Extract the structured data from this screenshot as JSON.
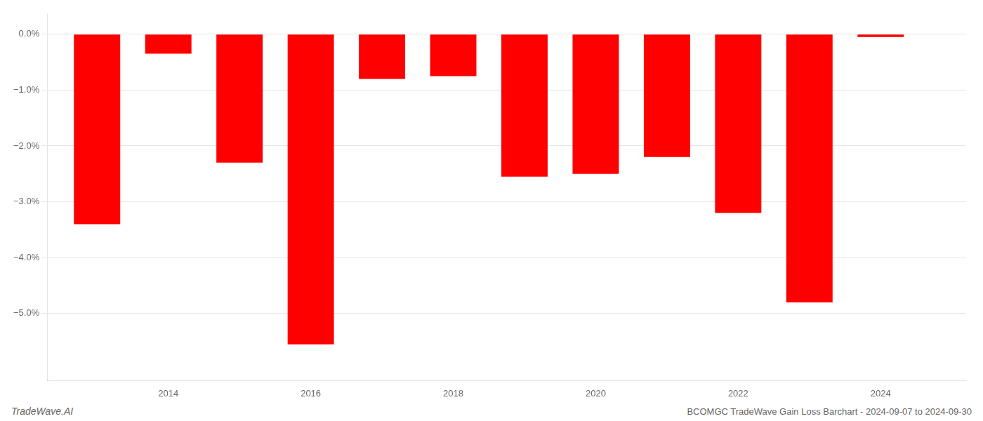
{
  "chart_data": {
    "type": "bar",
    "title": "BCOMGC TradeWave Gain Loss Barchart - 2024-09-07 to 2024-09-30",
    "annotations": [
      "TradeWave.AI"
    ],
    "x": [
      2013,
      2014,
      2015,
      2016,
      2017,
      2018,
      2019,
      2020,
      2021,
      2022,
      2023,
      2024
    ],
    "values": [
      -3.4,
      -0.35,
      -2.3,
      -5.55,
      -0.8,
      -0.75,
      -2.55,
      -2.5,
      -2.2,
      -3.2,
      -4.8,
      -0.05
    ],
    "color": "#ff0000",
    "xlim": [
      2012.3,
      2025.2
    ],
    "xticks": [
      2014,
      2016,
      2018,
      2020,
      2022,
      2024
    ],
    "ylim": [
      -6.2,
      0.35
    ],
    "yticks": [
      {
        "value": 0.0,
        "label": "0.0%"
      },
      {
        "value": -1.0,
        "label": "−1.0%"
      },
      {
        "value": -2.0,
        "label": "−2.0%"
      },
      {
        "value": -3.0,
        "label": "−3.0%"
      },
      {
        "value": -4.0,
        "label": "−4.0%"
      },
      {
        "value": -5.0,
        "label": "−5.0%"
      }
    ],
    "grid": true
  }
}
